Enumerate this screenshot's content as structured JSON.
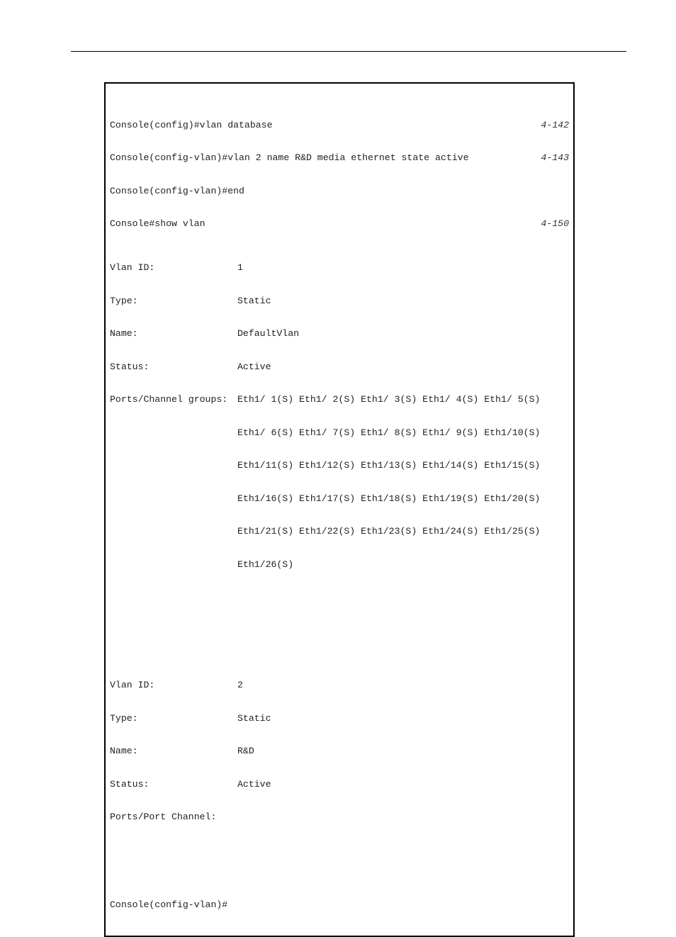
{
  "cmds": {
    "line1_left": "Console(config)#vlan database",
    "line1_right": "4-142",
    "line2_left": "Console(config-vlan)#vlan 2 name R&D media ethernet state active",
    "line2_right": "4-143",
    "line3": "Console(config-vlan)#end",
    "line4_left": "Console#show vlan",
    "line4_right": "4-150"
  },
  "vlan1": {
    "id_label": "Vlan ID:",
    "id_value": "1",
    "type_label": "Type:",
    "type_value": "Static",
    "name_label": "Name:",
    "name_value": "DefaultVlan",
    "status_label": "Status:",
    "status_value": "Active",
    "ports_label": "Ports/Channel groups:",
    "ports_line1": "Eth1/ 1(S) Eth1/ 2(S) Eth1/ 3(S) Eth1/ 4(S) Eth1/ 5(S)",
    "ports_line2": "Eth1/ 6(S) Eth1/ 7(S) Eth1/ 8(S) Eth1/ 9(S) Eth1/10(S)",
    "ports_line3": "Eth1/11(S) Eth1/12(S) Eth1/13(S) Eth1/14(S) Eth1/15(S)",
    "ports_line4": "Eth1/16(S) Eth1/17(S) Eth1/18(S) Eth1/19(S) Eth1/20(S)",
    "ports_line5": "Eth1/21(S) Eth1/22(S) Eth1/23(S) Eth1/24(S) Eth1/25(S)",
    "ports_line6": "Eth1/26(S)"
  },
  "vlan2": {
    "id_label": "Vlan ID:",
    "id_value": "2",
    "type_label": "Type:",
    "type_value": "Static",
    "name_label": "Name:",
    "name_value": "R&D",
    "status_label": "Status:",
    "status_value": "Active",
    "ports_label": "Ports/Port Channel:",
    "ports_value": ""
  },
  "prompt": "Console(config-vlan)#"
}
